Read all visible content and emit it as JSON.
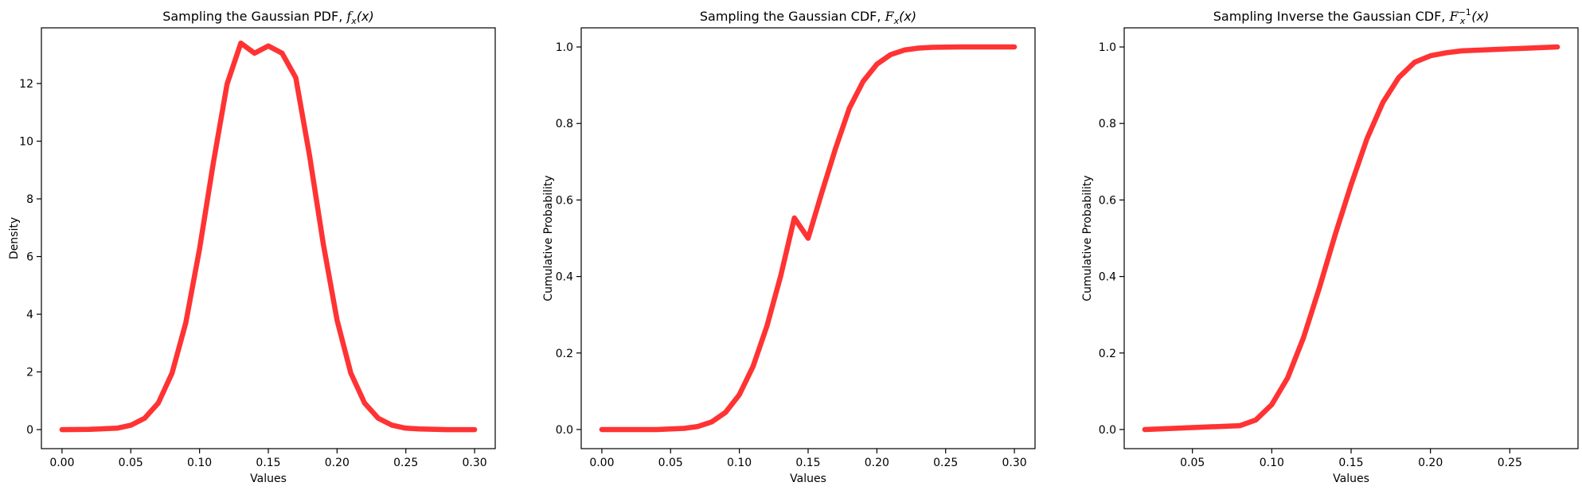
{
  "theme": {
    "line_color": "#ff3333"
  },
  "chart_data": [
    {
      "type": "line",
      "title": "Sampling the Gaussian PDF, ",
      "title_math": {
        "base": "f",
        "sub": "x",
        "sup": "",
        "arg": "(x)"
      },
      "xlabel": "Values",
      "ylabel": "Density",
      "xlim": [
        -0.015,
        0.315
      ],
      "ylim": [
        -0.66,
        13.93
      ],
      "xticks": [
        0.0,
        0.05,
        0.1,
        0.15,
        0.2,
        0.25,
        0.3
      ],
      "xtick_labels": [
        "0.00",
        "0.05",
        "0.10",
        "0.15",
        "0.20",
        "0.25",
        "0.30"
      ],
      "yticks": [
        0,
        2,
        4,
        6,
        8,
        10,
        12
      ],
      "ytick_labels": [
        "0",
        "2",
        "4",
        "6",
        "8",
        "10",
        "12"
      ],
      "grid": false,
      "series": [
        {
          "x": [
            0.0,
            0.02,
            0.04,
            0.05,
            0.06,
            0.07,
            0.08,
            0.09,
            0.1,
            0.11,
            0.12,
            0.13,
            0.14,
            0.15,
            0.16,
            0.17,
            0.18,
            0.19,
            0.2,
            0.21,
            0.22,
            0.23,
            0.24,
            0.25,
            0.26,
            0.28,
            0.3
          ],
          "y": [
            0.0,
            0.01,
            0.05,
            0.15,
            0.39,
            0.92,
            1.96,
            3.71,
            6.26,
            9.24,
            11.98,
            13.4,
            13.05,
            13.3,
            13.05,
            12.2,
            9.5,
            6.43,
            3.79,
            1.96,
            0.92,
            0.39,
            0.15,
            0.05,
            0.02,
            0.0,
            0.0
          ]
        }
      ]
    },
    {
      "type": "line",
      "title": "Sampling the Gaussian CDF, ",
      "title_math": {
        "base": "F",
        "sub": "x",
        "sup": "",
        "arg": "(x)"
      },
      "xlabel": "Values",
      "ylabel": "Cumulative Probability",
      "xlim": [
        -0.015,
        0.315
      ],
      "ylim": [
        -0.05,
        1.05
      ],
      "xticks": [
        0.0,
        0.05,
        0.1,
        0.15,
        0.2,
        0.25,
        0.3
      ],
      "xtick_labels": [
        "0.00",
        "0.05",
        "0.10",
        "0.15",
        "0.20",
        "0.25",
        "0.30"
      ],
      "yticks": [
        0.0,
        0.2,
        0.4,
        0.6,
        0.8,
        1.0
      ],
      "ytick_labels": [
        "0.0",
        "0.2",
        "0.4",
        "0.6",
        "0.8",
        "1.0"
      ],
      "grid": false,
      "series": [
        {
          "x": [
            0.0,
            0.04,
            0.06,
            0.07,
            0.08,
            0.09,
            0.1,
            0.11,
            0.12,
            0.13,
            0.14,
            0.15,
            0.16,
            0.17,
            0.18,
            0.19,
            0.2,
            0.21,
            0.22,
            0.23,
            0.24,
            0.26,
            0.3
          ],
          "y": [
            0.0,
            0.0,
            0.003,
            0.008,
            0.02,
            0.045,
            0.091,
            0.165,
            0.27,
            0.401,
            0.553,
            0.5,
            0.62,
            0.735,
            0.84,
            0.91,
            0.955,
            0.98,
            0.992,
            0.997,
            0.999,
            1.0,
            1.0
          ]
        }
      ]
    },
    {
      "type": "line",
      "title": "Sampling Inverse the Gaussian CDF, ",
      "title_math": {
        "base": "F",
        "sub": "x",
        "sup": "−1",
        "arg": "(x)"
      },
      "xlabel": "Values",
      "ylabel": "Cumulative Probability",
      "xlim": [
        0.007,
        0.293
      ],
      "ylim": [
        -0.05,
        1.05
      ],
      "xticks": [
        0.05,
        0.1,
        0.15,
        0.2,
        0.25
      ],
      "xtick_labels": [
        "0.05",
        "0.10",
        "0.15",
        "0.20",
        "0.25"
      ],
      "yticks": [
        0.0,
        0.2,
        0.4,
        0.6,
        0.8,
        1.0
      ],
      "ytick_labels": [
        "0.0",
        "0.2",
        "0.4",
        "0.6",
        "0.8",
        "1.0"
      ],
      "grid": false,
      "series": [
        {
          "x": [
            0.02,
            0.08,
            0.09,
            0.1,
            0.11,
            0.12,
            0.13,
            0.14,
            0.15,
            0.16,
            0.17,
            0.18,
            0.19,
            0.2,
            0.21,
            0.22,
            0.28
          ],
          "y": [
            0.0,
            0.01,
            0.025,
            0.065,
            0.135,
            0.24,
            0.37,
            0.51,
            0.64,
            0.76,
            0.855,
            0.92,
            0.96,
            0.977,
            0.985,
            0.99,
            1.0
          ]
        }
      ]
    }
  ]
}
